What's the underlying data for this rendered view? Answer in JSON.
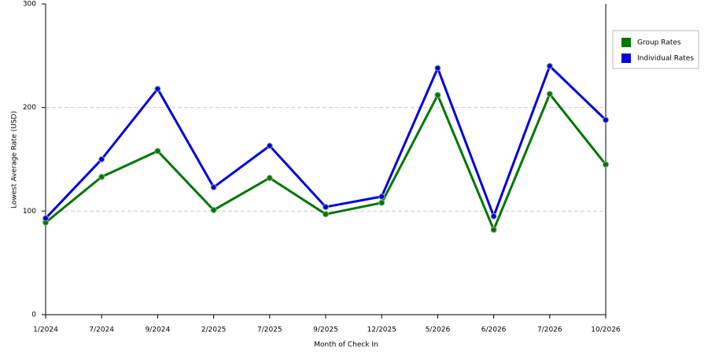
{
  "chart_data": {
    "type": "line",
    "x_label": "Month of Check In",
    "y_label": "Lowest Average Rate (USD)",
    "categories": [
      "1/2024",
      "7/2024",
      "9/2024",
      "2/2025",
      "7/2025",
      "9/2025",
      "12/2025",
      "5/2026",
      "6/2026",
      "7/2026",
      "10/2026"
    ],
    "series": [
      {
        "name": "Group Rates",
        "color": "#007700",
        "values": [
          89,
          133,
          158,
          101,
          132,
          97,
          108,
          212,
          82,
          213,
          145
        ]
      },
      {
        "name": "Individual Rates",
        "color": "#0000dd",
        "values": [
          93,
          150,
          218,
          123,
          163,
          104,
          114,
          238,
          95,
          240,
          188
        ]
      }
    ],
    "ylim": [
      0,
      300
    ],
    "yticks": [
      0,
      100,
      200,
      300
    ],
    "grid": true,
    "legend": "right"
  }
}
